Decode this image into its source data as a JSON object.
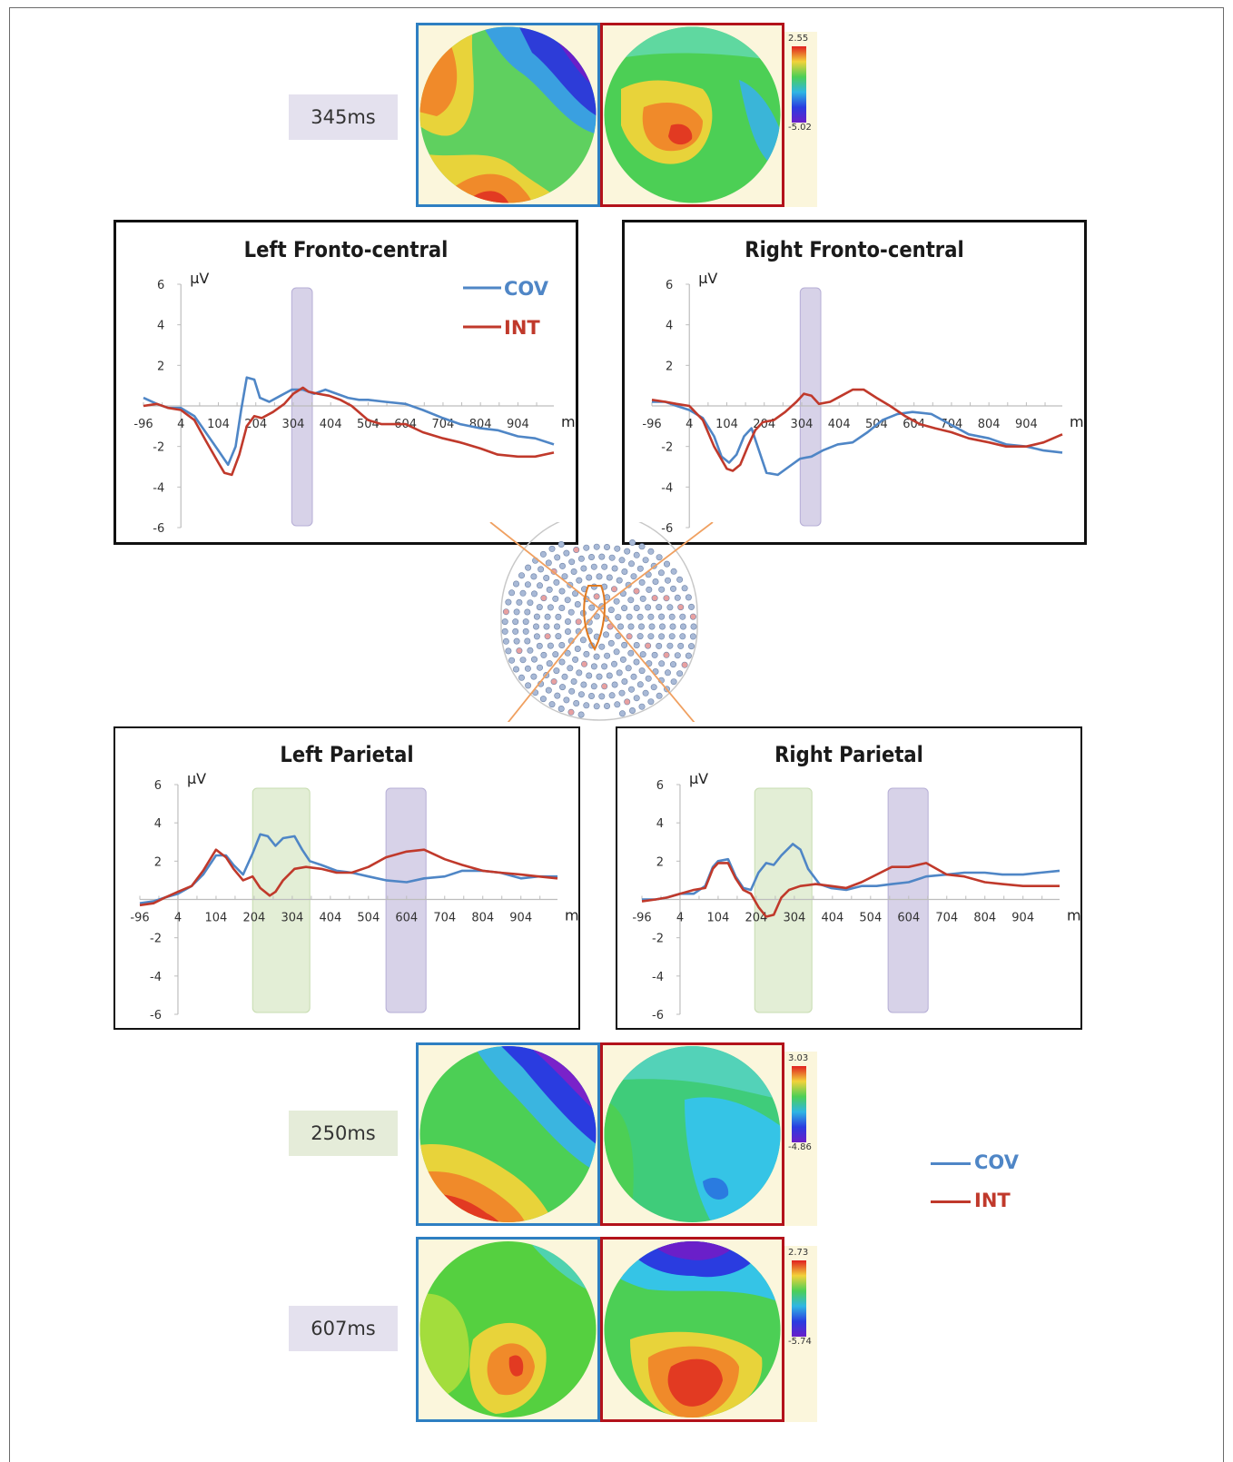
{
  "colors": {
    "cov": "#4f86c6",
    "int": "#c0392b",
    "cov_border": "#2e7fc2",
    "int_border": "#b3121b",
    "gray_window": "#c9c3e0",
    "green_window": "#d9e8c8"
  },
  "topo_top": {
    "time_label": "345ms",
    "scale_max": "2.55",
    "scale_min": "-5.02"
  },
  "topo_bottom": [
    {
      "time_label": "250ms",
      "scale_max": "3.03",
      "scale_min": "-4.86"
    },
    {
      "time_label": "607ms",
      "scale_max": "2.73",
      "scale_min": "-5.74"
    }
  ],
  "legend_bottom": {
    "cov": "COV",
    "int": "INT"
  },
  "chart_data": [
    {
      "type": "line",
      "title": "Left Fronto-central",
      "ylabel": "µV",
      "xlabel": "ms",
      "ylim": [
        -6,
        6
      ],
      "xlim": [
        -96,
        1000
      ],
      "y_ticks": [
        "6",
        "4",
        "2",
        "",
        "-2",
        "-4",
        "-6"
      ],
      "x_ticks": [
        "-96",
        "4",
        "104",
        "204",
        "304",
        "404",
        "504",
        "604",
        "704",
        "804",
        "904"
      ],
      "legend": {
        "placement": "top-right",
        "entries": [
          "COV",
          "INT"
        ]
      },
      "highlight_windows": [
        {
          "x0": 300,
          "x1": 355,
          "color": "gray"
        }
      ],
      "series": [
        {
          "name": "COV",
          "x": [
            -96,
            -60,
            -30,
            4,
            40,
            70,
            104,
            130,
            150,
            165,
            180,
            200,
            215,
            240,
            270,
            300,
            330,
            360,
            390,
            420,
            450,
            480,
            504,
            550,
            604,
            650,
            704,
            750,
            804,
            850,
            904,
            950,
            1000
          ],
          "y": [
            0.4,
            0.1,
            -0.1,
            -0.1,
            -0.5,
            -1.3,
            -2.2,
            -2.9,
            -2.0,
            -0.2,
            1.4,
            1.3,
            0.4,
            0.2,
            0.5,
            0.8,
            0.8,
            0.6,
            0.8,
            0.6,
            0.4,
            0.3,
            0.3,
            0.2,
            0.1,
            -0.2,
            -0.6,
            -0.9,
            -1.1,
            -1.2,
            -1.5,
            -1.6,
            -1.9
          ]
        },
        {
          "name": "INT",
          "x": [
            -96,
            -60,
            -30,
            4,
            40,
            70,
            104,
            120,
            140,
            160,
            180,
            200,
            220,
            250,
            280,
            304,
            330,
            345,
            370,
            400,
            430,
            460,
            504,
            540,
            604,
            650,
            704,
            750,
            804,
            850,
            904,
            950,
            1000
          ],
          "y": [
            0.0,
            0.1,
            -0.1,
            -0.2,
            -0.7,
            -1.7,
            -2.8,
            -3.3,
            -3.4,
            -2.4,
            -1.0,
            -0.5,
            -0.6,
            -0.3,
            0.1,
            0.6,
            0.9,
            0.7,
            0.6,
            0.5,
            0.3,
            0.0,
            -0.7,
            -0.9,
            -0.9,
            -1.3,
            -1.6,
            -1.8,
            -2.1,
            -2.4,
            -2.5,
            -2.5,
            -2.3
          ]
        }
      ]
    },
    {
      "type": "line",
      "title": "Right Fronto-central",
      "ylabel": "µV",
      "xlabel": "ms",
      "ylim": [
        -6,
        6
      ],
      "xlim": [
        -96,
        1000
      ],
      "y_ticks": [
        "6",
        "4",
        "2",
        "",
        "-2",
        "-4",
        "-6"
      ],
      "x_ticks": [
        "-96",
        "4",
        "104",
        "204",
        "304",
        "404",
        "504",
        "604",
        "704",
        "804",
        "904"
      ],
      "highlight_windows": [
        {
          "x0": 300,
          "x1": 355,
          "color": "gray"
        }
      ],
      "series": [
        {
          "name": "COV",
          "x": [
            -96,
            -60,
            -30,
            4,
            40,
            70,
            90,
            110,
            130,
            150,
            170,
            190,
            210,
            240,
            270,
            300,
            330,
            360,
            400,
            440,
            480,
            520,
            560,
            600,
            650,
            700,
            750,
            804,
            850,
            904,
            950,
            1000
          ],
          "y": [
            0.2,
            0.2,
            0.0,
            -0.2,
            -0.6,
            -1.5,
            -2.5,
            -2.8,
            -2.4,
            -1.5,
            -1.1,
            -2.2,
            -3.3,
            -3.4,
            -3.0,
            -2.6,
            -2.5,
            -2.2,
            -1.9,
            -1.8,
            -1.3,
            -0.7,
            -0.4,
            -0.3,
            -0.4,
            -0.9,
            -1.4,
            -1.6,
            -1.9,
            -2.0,
            -2.2,
            -2.3
          ]
        },
        {
          "name": "INT",
          "x": [
            -96,
            -60,
            -30,
            4,
            40,
            70,
            104,
            120,
            140,
            160,
            180,
            200,
            230,
            260,
            290,
            310,
            330,
            350,
            380,
            410,
            440,
            470,
            504,
            540,
            580,
            620,
            660,
            704,
            750,
            804,
            850,
            904,
            950,
            1000
          ],
          "y": [
            0.3,
            0.2,
            0.1,
            0.0,
            -0.7,
            -2.0,
            -3.1,
            -3.2,
            -2.9,
            -2.0,
            -1.2,
            -0.8,
            -0.7,
            -0.3,
            0.2,
            0.6,
            0.5,
            0.1,
            0.2,
            0.5,
            0.8,
            0.8,
            0.4,
            0.0,
            -0.5,
            -0.9,
            -1.1,
            -1.3,
            -1.6,
            -1.8,
            -2.0,
            -2.0,
            -1.8,
            -1.4
          ]
        }
      ]
    },
    {
      "type": "line",
      "title": "Left Parietal",
      "ylabel": "µV",
      "xlabel": "ms",
      "ylim": [
        -6,
        6
      ],
      "xlim": [
        -96,
        1000
      ],
      "y_ticks": [
        "6",
        "4",
        "2",
        "",
        "-2",
        "-4",
        "-6"
      ],
      "x_ticks": [
        "-96",
        "4",
        "104",
        "204",
        "304",
        "404",
        "504",
        "604",
        "704",
        "804",
        "904"
      ],
      "highlight_windows": [
        {
          "x0": 200,
          "x1": 350,
          "color": "green"
        },
        {
          "x0": 550,
          "x1": 655,
          "color": "gray"
        }
      ],
      "series": [
        {
          "name": "COV",
          "x": [
            -96,
            -60,
            -30,
            4,
            40,
            70,
            104,
            130,
            150,
            175,
            200,
            220,
            240,
            260,
            280,
            310,
            330,
            350,
            380,
            420,
            460,
            504,
            550,
            604,
            650,
            704,
            750,
            804,
            850,
            904,
            950,
            1000
          ],
          "y": [
            -0.2,
            -0.1,
            0.1,
            0.3,
            0.7,
            1.3,
            2.3,
            2.3,
            1.8,
            1.3,
            2.4,
            3.4,
            3.3,
            2.8,
            3.2,
            3.3,
            2.6,
            2.0,
            1.8,
            1.5,
            1.4,
            1.2,
            1.0,
            0.9,
            1.1,
            1.2,
            1.5,
            1.5,
            1.4,
            1.1,
            1.2,
            1.2
          ]
        },
        {
          "name": "INT",
          "x": [
            -96,
            -60,
            -30,
            4,
            40,
            70,
            104,
            130,
            150,
            175,
            200,
            220,
            245,
            260,
            280,
            310,
            340,
            380,
            420,
            460,
            504,
            550,
            604,
            650,
            704,
            750,
            804,
            850,
            904,
            950,
            1000
          ],
          "y": [
            -0.3,
            -0.2,
            0.1,
            0.4,
            0.7,
            1.5,
            2.6,
            2.2,
            1.6,
            1.0,
            1.2,
            0.6,
            0.2,
            0.4,
            1.0,
            1.6,
            1.7,
            1.6,
            1.4,
            1.4,
            1.7,
            2.2,
            2.5,
            2.6,
            2.1,
            1.8,
            1.5,
            1.4,
            1.3,
            1.2,
            1.1
          ]
        }
      ]
    },
    {
      "type": "line",
      "title": "Right Parietal",
      "ylabel": "µV",
      "xlabel": "ms",
      "ylim": [
        -6,
        6
      ],
      "xlim": [
        -96,
        1000
      ],
      "y_ticks": [
        "6",
        "4",
        "2",
        "",
        "-2",
        "-4",
        "-6"
      ],
      "x_ticks": [
        "-96",
        "4",
        "104",
        "204",
        "304",
        "404",
        "504",
        "604",
        "704",
        "804",
        "904"
      ],
      "highlight_windows": [
        {
          "x0": 200,
          "x1": 350,
          "color": "green"
        },
        {
          "x0": 550,
          "x1": 655,
          "color": "gray"
        }
      ],
      "series": [
        {
          "name": "COV",
          "x": [
            -96,
            -60,
            -30,
            4,
            40,
            70,
            90,
            104,
            130,
            150,
            170,
            190,
            210,
            230,
            250,
            270,
            300,
            320,
            340,
            370,
            400,
            440,
            480,
            520,
            560,
            604,
            650,
            704,
            750,
            804,
            850,
            904,
            950,
            1000
          ],
          "y": [
            0.0,
            0.0,
            0.1,
            0.3,
            0.3,
            0.7,
            1.7,
            2.0,
            2.1,
            1.2,
            0.6,
            0.5,
            1.4,
            1.9,
            1.8,
            2.3,
            2.9,
            2.6,
            1.6,
            0.8,
            0.6,
            0.5,
            0.7,
            0.7,
            0.8,
            0.9,
            1.2,
            1.3,
            1.4,
            1.4,
            1.3,
            1.3,
            1.4,
            1.5
          ]
        },
        {
          "name": "INT",
          "x": [
            -96,
            -60,
            -30,
            4,
            40,
            70,
            90,
            104,
            130,
            150,
            170,
            190,
            210,
            230,
            250,
            270,
            290,
            320,
            360,
            400,
            440,
            480,
            520,
            560,
            604,
            650,
            704,
            750,
            804,
            850,
            904,
            950,
            1000
          ],
          "y": [
            -0.1,
            0.0,
            0.1,
            0.3,
            0.5,
            0.6,
            1.6,
            1.9,
            1.9,
            1.1,
            0.5,
            0.3,
            -0.4,
            -0.9,
            -0.8,
            0.1,
            0.5,
            0.7,
            0.8,
            0.7,
            0.6,
            0.9,
            1.3,
            1.7,
            1.7,
            1.9,
            1.3,
            1.2,
            0.9,
            0.8,
            0.7,
            0.7,
            0.7
          ]
        }
      ]
    }
  ]
}
